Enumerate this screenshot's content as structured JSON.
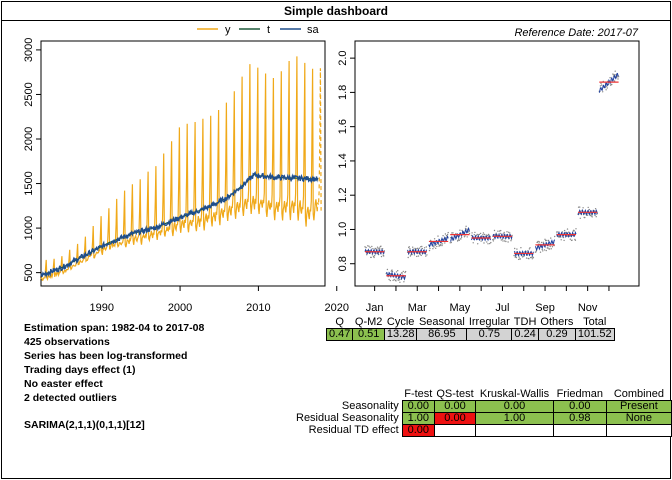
{
  "title": "Simple dashboard",
  "reference_date": "Reference Date: 2017-07",
  "legend": [
    {
      "label": "y",
      "color": "#f0a919"
    },
    {
      "label": "t",
      "color": "#1e5a3c"
    },
    {
      "label": "sa",
      "color": "#1f4e8c"
    }
  ],
  "chart_data": [
    {
      "type": "line",
      "title": "",
      "xlabel": "",
      "ylabel": "",
      "xlim": [
        1982.25,
        2018.5
      ],
      "ylim": [
        350,
        3100
      ],
      "x_ticks": [
        "1990",
        "2000",
        "2010",
        "2020"
      ],
      "y_ticks": [
        "500",
        "1000",
        "1500",
        "2000",
        "2500",
        "3000"
      ],
      "series": [
        {
          "name": "y",
          "color": "#f0a919",
          "x": [
            1982.25,
            1985,
            1988,
            1991,
            1994,
            1997,
            2000,
            2003,
            2006,
            2009,
            2012,
            2015,
            2016.5,
            2017.5
          ],
          "peaks": [
            620,
            700,
            920,
            1250,
            1500,
            1700,
            2150,
            2220,
            2400,
            2850,
            2700,
            2950,
            2800,
            2780
          ],
          "troughs": [
            420,
            500,
            640,
            780,
            850,
            900,
            1000,
            1040,
            1140,
            1240,
            1180,
            1180,
            1100,
            1200
          ],
          "forecast_from": 2017.58
        },
        {
          "name": "t",
          "color": "#1e5a3c",
          "x": [
            1982.25,
            1985,
            1988,
            1991,
            1994,
            1997,
            2000,
            2002,
            2004,
            2006,
            2008,
            2009.5,
            2010,
            2012,
            2015,
            2017.6
          ],
          "values": [
            470,
            560,
            700,
            840,
            940,
            1010,
            1120,
            1180,
            1250,
            1340,
            1480,
            1600,
            1590,
            1570,
            1560,
            1550
          ]
        },
        {
          "name": "sa",
          "color": "#1f4e8c",
          "x": [
            1982.25,
            1985,
            1988,
            1991,
            1994,
            1997,
            2000,
            2002,
            2004,
            2006,
            2008,
            2009.5,
            2010,
            2012,
            2015,
            2017.6
          ],
          "values": [
            470,
            560,
            700,
            840,
            940,
            1010,
            1120,
            1180,
            1250,
            1340,
            1480,
            1600,
            1590,
            1570,
            1560,
            1550
          ]
        }
      ]
    },
    {
      "type": "scatter",
      "title": "",
      "xlabel": "",
      "ylabel": "",
      "ylim": [
        0.67,
        2.1
      ],
      "y_ticks": [
        "0.8",
        "1.0",
        "1.2",
        "1.4",
        "1.6",
        "1.8",
        "2.0"
      ],
      "x_ticks": [
        "Jan",
        "Mar",
        "May",
        "Jul",
        "Sep",
        "Nov"
      ],
      "months": [
        "Jan",
        "Feb",
        "Mar",
        "Apr",
        "May",
        "Jun",
        "Jul",
        "Aug",
        "Sep",
        "Oct",
        "Nov",
        "Dec"
      ],
      "month_means": [
        0.87,
        0.73,
        0.87,
        0.93,
        0.97,
        0.95,
        0.96,
        0.86,
        0.91,
        0.97,
        1.1,
        1.86
      ]
    }
  ],
  "stats_table": {
    "headers": [
      "Q",
      "Q-M2",
      "Cycle",
      "Seasonal",
      "Irregular",
      "TDH",
      "Others",
      "Total"
    ],
    "values": [
      "0.47",
      "0.51",
      "13.28",
      "86.95",
      "0.75",
      "0.24",
      "0.29",
      "101.52"
    ]
  },
  "summary": {
    "span": "Estimation span: 1982-04 to 2017-08",
    "obs": "425 observations",
    "log": "Series has been log-transformed",
    "td": "Trading days effect (1)",
    "easter": "No easter effect",
    "outliers": "2 detected outliers",
    "model": "SARIMA(2,1,1)(0,1,1)[12]"
  },
  "tests_table": {
    "headers": [
      "F-test",
      "QS-test",
      "Kruskal-Wallis",
      "Friedman",
      "Combined"
    ],
    "rows": [
      {
        "label": "Seasonality",
        "cells": [
          "0.00",
          "0.00",
          "0.00",
          "0.00",
          "Present"
        ]
      },
      {
        "label": "Residual Seasonality",
        "cells": [
          "1.00",
          "0.00",
          "1.00",
          "0.98",
          "None"
        ]
      },
      {
        "label": "Residual TD effect",
        "cells": [
          "0.00",
          "",
          "",
          "",
          ""
        ]
      }
    ]
  }
}
